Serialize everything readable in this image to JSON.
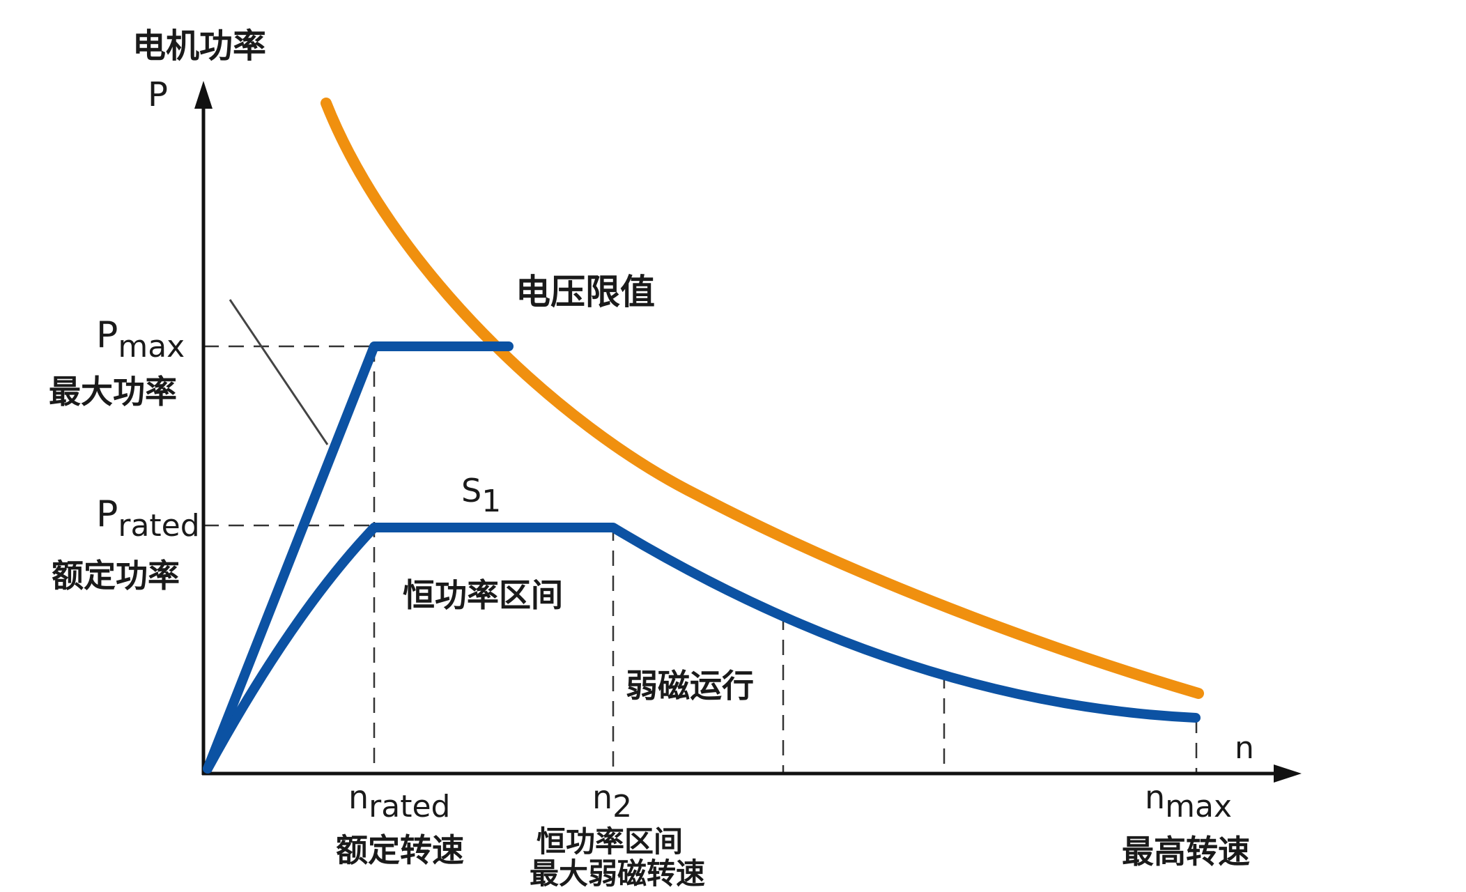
{
  "axes": {
    "y_title": "电机功率",
    "y_symbol": "P",
    "x_symbol": "n"
  },
  "power_levels": {
    "pmax_symbol": "P",
    "pmax_sub": "max",
    "pmax_label": "最大功率",
    "prated_symbol": "P",
    "prated_sub": "rated",
    "prated_label": "额定功率"
  },
  "speed_levels": {
    "nrated_symbol": "n",
    "nrated_sub": "rated",
    "nrated_label": "额定转速",
    "n2_symbol": "n",
    "n2_sub": "2",
    "n2_label_1": "恒功率区间",
    "n2_label_2": "最大弱磁转速",
    "nmax_symbol": "n",
    "nmax_sub": "max",
    "nmax_label": "最高转速"
  },
  "curves": {
    "voltage_limit_label": "电压限值",
    "s1_symbol": "S",
    "s1_sub": "1",
    "voltage_limit_color": "#f0900f",
    "power_curve_color": "#0c52a3"
  },
  "regions": {
    "constant_power_label": "恒功率区间",
    "field_weakening_label": "弱磁运行"
  }
}
